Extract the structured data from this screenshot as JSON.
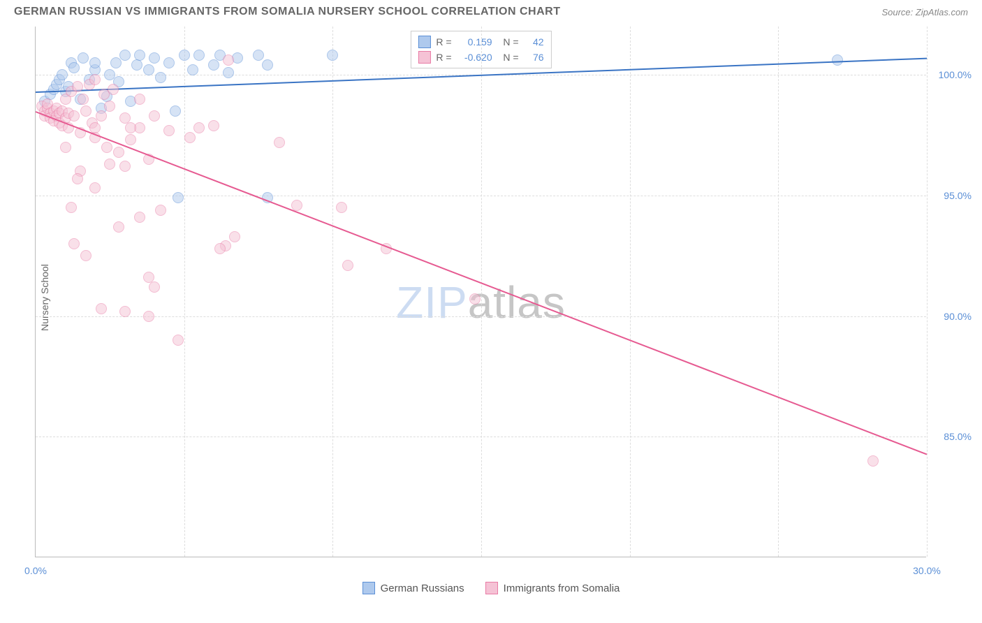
{
  "title": "GERMAN RUSSIAN VS IMMIGRANTS FROM SOMALIA NURSERY SCHOOL CORRELATION CHART",
  "source": "Source: ZipAtlas.com",
  "watermark": {
    "part1": "ZIP",
    "part2": "atlas"
  },
  "ylabel": "Nursery School",
  "chart": {
    "type": "scatter",
    "xlim": [
      0,
      30
    ],
    "ylim": [
      80,
      102
    ],
    "xticks": [
      0,
      30
    ],
    "xtick_labels": [
      "0.0%",
      "30.0%"
    ],
    "xgrid": [
      0,
      5,
      10,
      15,
      20,
      25,
      30
    ],
    "yticks": [
      85,
      90,
      95,
      100
    ],
    "ytick_labels": [
      "85.0%",
      "90.0%",
      "95.0%",
      "100.0%"
    ],
    "background_color": "#ffffff",
    "grid_color": "#dddddd",
    "axis_color": "#bbbbbb",
    "marker_size": 16,
    "marker_opacity": 0.5,
    "series": [
      {
        "name": "German Russians",
        "color_stroke": "#5b8fd6",
        "color_fill": "#aec9ed",
        "R": "0.159",
        "N": "42",
        "trend": {
          "x1": 0,
          "y1": 99.3,
          "x2": 30,
          "y2": 100.7,
          "color": "#3a74c4",
          "width": 2
        },
        "points": [
          [
            0.3,
            98.9
          ],
          [
            0.5,
            99.2
          ],
          [
            0.6,
            99.4
          ],
          [
            0.7,
            99.6
          ],
          [
            0.8,
            99.8
          ],
          [
            0.9,
            100.0
          ],
          [
            1.0,
            99.3
          ],
          [
            1.1,
            99.5
          ],
          [
            1.2,
            100.5
          ],
          [
            1.3,
            100.3
          ],
          [
            1.5,
            99.0
          ],
          [
            1.6,
            100.7
          ],
          [
            1.8,
            99.8
          ],
          [
            2.0,
            100.2
          ],
          [
            2.0,
            100.5
          ],
          [
            2.2,
            98.6
          ],
          [
            2.4,
            99.1
          ],
          [
            2.5,
            100.0
          ],
          [
            2.7,
            100.5
          ],
          [
            2.8,
            99.7
          ],
          [
            3.0,
            100.8
          ],
          [
            3.2,
            98.9
          ],
          [
            3.4,
            100.4
          ],
          [
            3.5,
            100.8
          ],
          [
            3.8,
            100.2
          ],
          [
            4.0,
            100.7
          ],
          [
            4.2,
            99.9
          ],
          [
            4.5,
            100.5
          ],
          [
            4.7,
            98.5
          ],
          [
            5.0,
            100.8
          ],
          [
            5.3,
            100.2
          ],
          [
            5.5,
            100.8
          ],
          [
            6.0,
            100.4
          ],
          [
            6.2,
            100.8
          ],
          [
            6.5,
            100.1
          ],
          [
            6.8,
            100.7
          ],
          [
            7.5,
            100.8
          ],
          [
            7.8,
            100.4
          ],
          [
            4.8,
            94.9
          ],
          [
            7.8,
            94.9
          ],
          [
            10.0,
            100.8
          ],
          [
            27.0,
            100.6
          ]
        ]
      },
      {
        "name": "Immigrants from Somalia",
        "color_stroke": "#e97ba5",
        "color_fill": "#f5c2d5",
        "R": "-0.620",
        "N": "76",
        "trend": {
          "x1": 0,
          "y1": 98.5,
          "x2": 30,
          "y2": 84.3,
          "color": "#e65a91",
          "width": 2
        },
        "points": [
          [
            0.2,
            98.7
          ],
          [
            0.3,
            98.5
          ],
          [
            0.3,
            98.3
          ],
          [
            0.4,
            98.6
          ],
          [
            0.4,
            98.8
          ],
          [
            0.5,
            98.4
          ],
          [
            0.5,
            98.2
          ],
          [
            0.6,
            98.5
          ],
          [
            0.6,
            98.1
          ],
          [
            0.7,
            98.6
          ],
          [
            0.7,
            98.3
          ],
          [
            0.8,
            98.4
          ],
          [
            0.8,
            98.0
          ],
          [
            0.9,
            98.5
          ],
          [
            0.9,
            97.9
          ],
          [
            1.0,
            98.2
          ],
          [
            1.0,
            99.0
          ],
          [
            1.1,
            98.4
          ],
          [
            1.1,
            97.8
          ],
          [
            1.2,
            99.3
          ],
          [
            1.3,
            98.3
          ],
          [
            1.4,
            99.5
          ],
          [
            1.5,
            97.6
          ],
          [
            1.6,
            99.0
          ],
          [
            1.7,
            98.5
          ],
          [
            1.8,
            99.6
          ],
          [
            1.9,
            98.0
          ],
          [
            2.0,
            99.8
          ],
          [
            2.0,
            97.4
          ],
          [
            2.2,
            98.3
          ],
          [
            2.3,
            99.2
          ],
          [
            2.4,
            97.0
          ],
          [
            2.5,
            98.7
          ],
          [
            2.6,
            99.4
          ],
          [
            2.8,
            96.8
          ],
          [
            3.0,
            98.2
          ],
          [
            3.2,
            97.3
          ],
          [
            3.5,
            99.0
          ],
          [
            3.5,
            97.8
          ],
          [
            3.8,
            96.5
          ],
          [
            4.0,
            98.3
          ],
          [
            2.5,
            96.3
          ],
          [
            3.0,
            96.2
          ],
          [
            1.5,
            96.0
          ],
          [
            2.0,
            95.3
          ],
          [
            4.2,
            94.4
          ],
          [
            5.5,
            97.8
          ],
          [
            6.0,
            97.9
          ],
          [
            6.5,
            100.6
          ],
          [
            3.5,
            94.1
          ],
          [
            2.8,
            93.7
          ],
          [
            6.7,
            93.3
          ],
          [
            1.3,
            93.0
          ],
          [
            6.4,
            92.9
          ],
          [
            8.2,
            97.2
          ],
          [
            3.8,
            91.6
          ],
          [
            4.0,
            91.2
          ],
          [
            6.2,
            92.8
          ],
          [
            10.5,
            92.1
          ],
          [
            11.8,
            92.8
          ],
          [
            3.0,
            90.2
          ],
          [
            8.8,
            94.6
          ],
          [
            10.3,
            94.5
          ],
          [
            14.8,
            90.7
          ],
          [
            3.8,
            90.0
          ],
          [
            4.8,
            89.0
          ],
          [
            2.2,
            90.3
          ],
          [
            1.7,
            92.5
          ],
          [
            1.0,
            97.0
          ],
          [
            1.2,
            94.5
          ],
          [
            1.4,
            95.7
          ],
          [
            2.0,
            97.8
          ],
          [
            3.2,
            97.8
          ],
          [
            4.5,
            97.7
          ],
          [
            5.2,
            97.4
          ],
          [
            28.2,
            84.0
          ]
        ]
      }
    ]
  },
  "legend": {
    "items": [
      {
        "label": "German Russians",
        "fill": "#aec9ed",
        "stroke": "#5b8fd6"
      },
      {
        "label": "Immigrants from Somalia",
        "fill": "#f5c2d5",
        "stroke": "#e97ba5"
      }
    ]
  }
}
